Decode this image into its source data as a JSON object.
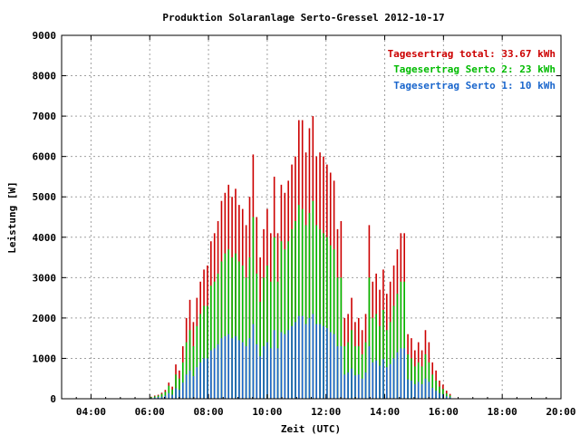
{
  "chart_data": {
    "type": "bar",
    "title": "Produktion Solaranlage Serto-Gressel 2012-10-17",
    "xlabel": "Zeit (UTC)",
    "ylabel": "Leistung [W]",
    "xlim": [
      3.0,
      20.0
    ],
    "ylim": [
      0,
      9000
    ],
    "grid": true,
    "legend_position": "top-right",
    "x_ticks": [
      "04:00",
      "06:00",
      "08:00",
      "10:00",
      "12:00",
      "14:00",
      "16:00",
      "18:00",
      "20:00"
    ],
    "x_tick_values": [
      4,
      6,
      8,
      10,
      12,
      14,
      16,
      18,
      20
    ],
    "y_ticks": [
      0,
      1000,
      2000,
      3000,
      4000,
      5000,
      6000,
      7000,
      8000,
      9000
    ],
    "series": [
      {
        "name": "Tagesertrag total: 33.67 kWh",
        "color": "#cc0000",
        "values": [
          50,
          80,
          100,
          150,
          220,
          400,
          300,
          850,
          700,
          1300,
          2000,
          2450,
          1900,
          2500,
          2900,
          3200,
          3300,
          3900,
          4100,
          4400,
          4900,
          5100,
          5300,
          5000,
          5200,
          4800,
          4700,
          4300,
          5000,
          6050,
          4500,
          3500,
          4200,
          4700,
          4100,
          5500,
          4100,
          5300,
          5100,
          5400,
          5800,
          6000,
          6900,
          6900,
          6100,
          6700,
          7000,
          6000,
          6100,
          6000,
          5800,
          5600,
          5400,
          4200,
          4400,
          2000,
          2100,
          2500,
          1900,
          2000,
          1700,
          2100,
          4300,
          2900,
          3100,
          2700,
          3200,
          2600,
          2900,
          3300,
          3700,
          4100,
          4100,
          1600,
          1500,
          1200,
          1400,
          1200,
          1700,
          1400,
          900,
          700,
          450,
          350,
          200,
          120
        ]
      },
      {
        "name": "Tagesertrag Serto 2: 23 kWh",
        "color": "#00bb00",
        "values": [
          40,
          60,
          80,
          120,
          170,
          320,
          230,
          600,
          500,
          900,
          1400,
          1700,
          1300,
          1800,
          2100,
          2300,
          2300,
          2800,
          2900,
          3100,
          3400,
          3600,
          3700,
          3500,
          3600,
          3400,
          3300,
          3000,
          3500,
          4500,
          3100,
          2400,
          3000,
          3300,
          2900,
          4000,
          2900,
          3900,
          3700,
          3900,
          4200,
          4400,
          4800,
          4700,
          4300,
          4600,
          4900,
          4300,
          4200,
          4100,
          4000,
          3800,
          3700,
          3000,
          3000,
          1300,
          1400,
          1700,
          1300,
          1300,
          1100,
          1400,
          3000,
          2000,
          2100,
          1800,
          2200,
          1700,
          1900,
          2300,
          2600,
          2900,
          2900,
          1100,
          1000,
          800,
          900,
          800,
          1100,
          900,
          600,
          450,
          300,
          240,
          130,
          80
        ]
      },
      {
        "name": "Tagesertrag Serto 1: 10 kWh",
        "color": "#1a66cc",
        "values": [
          20,
          30,
          40,
          50,
          80,
          140,
          100,
          260,
          220,
          400,
          600,
          700,
          560,
          780,
          900,
          1000,
          1000,
          1200,
          1250,
          1350,
          1500,
          1550,
          1600,
          1500,
          1550,
          1450,
          1400,
          1300,
          1500,
          1850,
          1350,
          1050,
          1300,
          1400,
          1250,
          1700,
          1250,
          1650,
          1600,
          1700,
          1800,
          1900,
          2050,
          2050,
          1850,
          2000,
          2100,
          1850,
          1850,
          1800,
          1750,
          1650,
          1600,
          1300,
          1300,
          600,
          650,
          750,
          580,
          600,
          500,
          650,
          1300,
          900,
          950,
          820,
          980,
          780,
          860,
          1000,
          1150,
          1250,
          1250,
          480,
          450,
          360,
          420,
          360,
          500,
          420,
          270,
          200,
          140,
          110,
          60,
          40
        ]
      }
    ],
    "bar_start_hour": 6.05,
    "bar_step_hour": 0.1197
  }
}
